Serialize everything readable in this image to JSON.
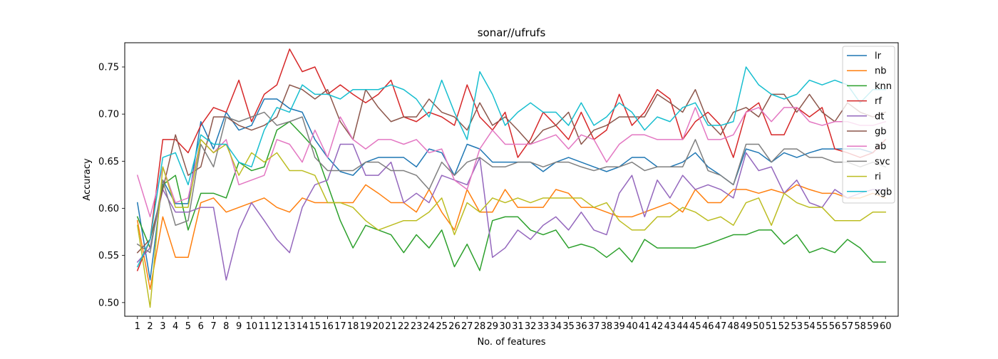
{
  "chart_data": {
    "type": "line",
    "title": "sonar//ufrufs",
    "xlabel": "No. of features",
    "ylabel": "Accuracy",
    "x": [
      1,
      2,
      3,
      4,
      5,
      6,
      7,
      8,
      9,
      10,
      11,
      12,
      13,
      14,
      15,
      16,
      17,
      18,
      19,
      20,
      21,
      22,
      23,
      24,
      25,
      26,
      27,
      28,
      29,
      30,
      31,
      32,
      33,
      34,
      35,
      36,
      37,
      38,
      39,
      40,
      41,
      42,
      43,
      44,
      45,
      46,
      47,
      48,
      49,
      50,
      51,
      52,
      53,
      54,
      55,
      56,
      57,
      58,
      59,
      60
    ],
    "xlim": [
      0,
      61
    ],
    "ylim": [
      0.4855,
      0.7757
    ],
    "yticks": [
      0.5,
      0.55,
      0.6,
      0.65,
      0.7,
      0.75
    ],
    "ytick_labels": [
      "0.50",
      "0.55",
      "0.60",
      "0.65",
      "0.70",
      "0.75"
    ],
    "grid": false,
    "legend_position": "top-right",
    "series": [
      {
        "name": "lr",
        "color": "#1f77b4",
        "values": [
          0.606,
          0.524,
          0.63,
          0.605,
          0.605,
          0.692,
          0.663,
          0.702,
          0.683,
          0.688,
          0.716,
          0.716,
          0.706,
          0.702,
          0.673,
          0.654,
          0.639,
          0.635,
          0.649,
          0.654,
          0.654,
          0.654,
          0.644,
          0.663,
          0.659,
          0.635,
          0.668,
          0.663,
          0.649,
          0.649,
          0.649,
          0.649,
          0.639,
          0.649,
          0.654,
          0.649,
          0.644,
          0.639,
          0.644,
          0.654,
          0.654,
          0.644,
          0.644,
          0.649,
          0.659,
          0.644,
          0.635,
          0.625,
          0.663,
          0.659,
          0.649,
          0.659,
          0.654,
          0.659,
          0.663,
          0.663,
          0.663,
          0.663,
          0.659,
          0.673
        ]
      },
      {
        "name": "nb",
        "color": "#ff7f0e",
        "values": [
          0.587,
          0.514,
          0.591,
          0.548,
          0.548,
          0.606,
          0.611,
          0.596,
          0.601,
          0.606,
          0.611,
          0.601,
          0.596,
          0.611,
          0.606,
          0.606,
          0.606,
          0.606,
          0.625,
          0.616,
          0.606,
          0.606,
          0.596,
          0.62,
          0.596,
          0.577,
          0.62,
          0.596,
          0.596,
          0.62,
          0.601,
          0.601,
          0.601,
          0.62,
          0.616,
          0.601,
          0.601,
          0.596,
          0.591,
          0.591,
          0.596,
          0.601,
          0.606,
          0.596,
          0.62,
          0.606,
          0.606,
          0.62,
          0.62,
          0.616,
          0.62,
          0.616,
          0.625,
          0.62,
          0.616,
          0.616,
          0.611,
          0.611,
          0.616,
          0.611
        ]
      },
      {
        "name": "knn",
        "color": "#2ca02c",
        "values": [
          0.591,
          0.558,
          0.625,
          0.635,
          0.577,
          0.616,
          0.616,
          0.611,
          0.649,
          0.64,
          0.644,
          0.683,
          0.692,
          0.678,
          0.663,
          0.625,
          0.587,
          0.558,
          0.582,
          0.577,
          0.572,
          0.553,
          0.572,
          0.558,
          0.577,
          0.538,
          0.562,
          0.534,
          0.587,
          0.591,
          0.591,
          0.577,
          0.572,
          0.577,
          0.558,
          0.562,
          0.558,
          0.548,
          0.558,
          0.543,
          0.567,
          0.558,
          0.558,
          0.558,
          0.558,
          0.562,
          0.567,
          0.572,
          0.572,
          0.577,
          0.577,
          0.562,
          0.572,
          0.553,
          0.558,
          0.553,
          0.567,
          0.558,
          0.543,
          0.543
        ]
      },
      {
        "name": "rf",
        "color": "#d62728",
        "values": [
          0.534,
          0.567,
          0.673,
          0.673,
          0.659,
          0.688,
          0.707,
          0.702,
          0.736,
          0.692,
          0.721,
          0.731,
          0.769,
          0.745,
          0.75,
          0.721,
          0.731,
          0.721,
          0.712,
          0.721,
          0.736,
          0.697,
          0.692,
          0.702,
          0.697,
          0.688,
          0.731,
          0.697,
          0.683,
          0.702,
          0.654,
          0.673,
          0.702,
          0.688,
          0.673,
          0.702,
          0.673,
          0.683,
          0.721,
          0.688,
          0.702,
          0.726,
          0.716,
          0.673,
          0.692,
          0.702,
          0.688,
          0.654,
          0.702,
          0.712,
          0.678,
          0.678,
          0.707,
          0.697,
          0.707,
          0.663,
          0.659,
          0.654,
          0.659,
          0.673
        ]
      },
      {
        "name": "dt",
        "color": "#9467bd",
        "values": [
          0.543,
          0.558,
          0.62,
          0.596,
          0.596,
          0.601,
          0.601,
          0.524,
          0.577,
          0.606,
          0.587,
          0.567,
          0.553,
          0.601,
          0.625,
          0.63,
          0.668,
          0.668,
          0.635,
          0.635,
          0.649,
          0.606,
          0.616,
          0.606,
          0.635,
          0.63,
          0.625,
          0.654,
          0.548,
          0.558,
          0.577,
          0.567,
          0.582,
          0.591,
          0.577,
          0.596,
          0.577,
          0.572,
          0.616,
          0.635,
          0.591,
          0.63,
          0.611,
          0.635,
          0.62,
          0.625,
          0.62,
          0.611,
          0.659,
          0.64,
          0.644,
          0.616,
          0.63,
          0.606,
          0.601,
          0.62,
          0.611,
          0.616,
          0.62,
          0.62
        ]
      },
      {
        "name": "gb",
        "color": "#8c564b",
        "values": [
          0.553,
          0.567,
          0.62,
          0.678,
          0.635,
          0.644,
          0.697,
          0.697,
          0.688,
          0.683,
          0.688,
          0.697,
          0.731,
          0.726,
          0.716,
          0.726,
          0.692,
          0.673,
          0.726,
          0.707,
          0.692,
          0.697,
          0.697,
          0.716,
          0.702,
          0.697,
          0.683,
          0.712,
          0.688,
          0.697,
          0.683,
          0.668,
          0.683,
          0.688,
          0.702,
          0.668,
          0.683,
          0.688,
          0.697,
          0.697,
          0.697,
          0.721,
          0.712,
          0.702,
          0.726,
          0.692,
          0.678,
          0.702,
          0.707,
          0.697,
          0.721,
          0.721,
          0.702,
          0.721,
          0.702,
          0.692,
          0.712,
          0.702,
          0.697,
          0.702
        ]
      },
      {
        "name": "ab",
        "color": "#e377c2",
        "values": [
          0.635,
          0.591,
          0.644,
          0.606,
          0.611,
          0.673,
          0.659,
          0.673,
          0.625,
          0.63,
          0.635,
          0.673,
          0.668,
          0.649,
          0.683,
          0.654,
          0.697,
          0.673,
          0.663,
          0.673,
          0.673,
          0.668,
          0.673,
          0.659,
          0.663,
          0.63,
          0.62,
          0.663,
          0.683,
          0.668,
          0.668,
          0.668,
          0.673,
          0.678,
          0.663,
          0.678,
          0.673,
          0.649,
          0.668,
          0.678,
          0.678,
          0.673,
          0.673,
          0.673,
          0.707,
          0.673,
          0.673,
          0.678,
          0.702,
          0.707,
          0.692,
          0.707,
          0.707,
          0.692,
          0.688,
          0.692,
          0.692,
          0.688,
          0.688,
          0.692
        ]
      },
      {
        "name": "svc",
        "color": "#7f7f7f",
        "values": [
          0.562,
          0.553,
          0.63,
          0.582,
          0.587,
          0.668,
          0.644,
          0.697,
          0.692,
          0.697,
          0.702,
          0.688,
          0.692,
          0.697,
          0.654,
          0.64,
          0.64,
          0.64,
          0.649,
          0.649,
          0.64,
          0.64,
          0.635,
          0.62,
          0.649,
          0.635,
          0.649,
          0.654,
          0.644,
          0.644,
          0.649,
          0.649,
          0.644,
          0.649,
          0.649,
          0.644,
          0.64,
          0.644,
          0.644,
          0.649,
          0.64,
          0.644,
          0.644,
          0.644,
          0.673,
          0.64,
          0.635,
          0.625,
          0.668,
          0.668,
          0.649,
          0.663,
          0.663,
          0.654,
          0.654,
          0.649,
          0.649,
          0.644,
          0.649,
          0.644
        ]
      },
      {
        "name": "ri",
        "color": "#bcbd22",
        "values": [
          0.582,
          0.495,
          0.644,
          0.601,
          0.601,
          0.673,
          0.659,
          0.668,
          0.635,
          0.659,
          0.649,
          0.659,
          0.64,
          0.64,
          0.635,
          0.606,
          0.606,
          0.601,
          0.587,
          0.577,
          0.582,
          0.587,
          0.587,
          0.596,
          0.611,
          0.572,
          0.606,
          0.596,
          0.611,
          0.606,
          0.611,
          0.606,
          0.611,
          0.611,
          0.611,
          0.611,
          0.601,
          0.606,
          0.587,
          0.577,
          0.577,
          0.591,
          0.591,
          0.601,
          0.596,
          0.587,
          0.591,
          0.582,
          0.606,
          0.611,
          0.582,
          0.616,
          0.606,
          0.601,
          0.601,
          0.587,
          0.587,
          0.587,
          0.596,
          0.596
        ]
      },
      {
        "name": "xgb",
        "color": "#17becf",
        "values": [
          0.538,
          0.567,
          0.654,
          0.659,
          0.625,
          0.678,
          0.668,
          0.668,
          0.649,
          0.644,
          0.683,
          0.707,
          0.702,
          0.731,
          0.721,
          0.721,
          0.716,
          0.726,
          0.726,
          0.726,
          0.731,
          0.726,
          0.716,
          0.697,
          0.736,
          0.702,
          0.673,
          0.745,
          0.721,
          0.688,
          0.702,
          0.712,
          0.702,
          0.702,
          0.688,
          0.712,
          0.688,
          0.697,
          0.712,
          0.702,
          0.683,
          0.697,
          0.692,
          0.707,
          0.712,
          0.688,
          0.688,
          0.692,
          0.75,
          0.731,
          0.721,
          0.716,
          0.721,
          0.736,
          0.731,
          0.736,
          0.731,
          0.712,
          0.726,
          0.726
        ]
      }
    ]
  }
}
